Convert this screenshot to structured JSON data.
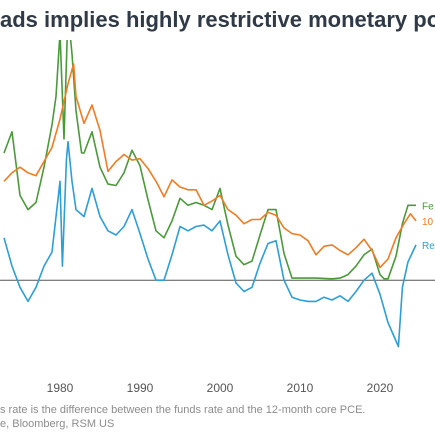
{
  "title": "ads implies highly restrictive monetary pol",
  "footnote_line1": "s rate is the difference between the funds rate and the 12-month core PCE.",
  "footnote_line2": "e, Bloomberg, RSM US",
  "colors": {
    "fed_funds": "#4a9a3a",
    "ten_year": "#f07c24",
    "real_rate": "#2c9fd6",
    "zero_line": "#555555",
    "title": "#2f3a46"
  },
  "chart_data": {
    "type": "line",
    "title": "ads implies highly restrictive monetary pol",
    "xlabel": "",
    "ylabel": "",
    "x_ticks": [
      1980,
      1990,
      2000,
      2010,
      2020
    ],
    "xlim": [
      1972.5,
      2025
    ],
    "ylim": [
      -6,
      17
    ],
    "zero_line": 0,
    "legend_placement": "right",
    "series": [
      {
        "name": "Fe",
        "color": "#4a9a3a",
        "points": [
          [
            1973,
            9.0
          ],
          [
            1974,
            10.5
          ],
          [
            1975,
            6.0
          ],
          [
            1976,
            5.0
          ],
          [
            1977,
            5.5
          ],
          [
            1978,
            8.0
          ],
          [
            1979,
            11.0
          ],
          [
            1979.5,
            13.0
          ],
          [
            1980,
            17.5
          ],
          [
            1980.5,
            10.0
          ],
          [
            1981,
            19.0
          ],
          [
            1981.5,
            16.0
          ],
          [
            1982,
            12.0
          ],
          [
            1982.7,
            9.0
          ],
          [
            1983,
            9.0
          ],
          [
            1984,
            10.5
          ],
          [
            1985,
            8.0
          ],
          [
            1986,
            6.8
          ],
          [
            1987,
            6.7
          ],
          [
            1988,
            7.6
          ],
          [
            1989,
            9.2
          ],
          [
            1990,
            8.1
          ],
          [
            1991,
            5.7
          ],
          [
            1992,
            3.5
          ],
          [
            1993,
            3.0
          ],
          [
            1994,
            4.2
          ],
          [
            1995,
            5.8
          ],
          [
            1996,
            5.3
          ],
          [
            1997,
            5.5
          ],
          [
            1998,
            5.3
          ],
          [
            1999,
            5.0
          ],
          [
            2000,
            6.5
          ],
          [
            2001,
            3.9
          ],
          [
            2002,
            1.7
          ],
          [
            2003,
            1.1
          ],
          [
            2004,
            1.35
          ],
          [
            2005,
            3.2
          ],
          [
            2006,
            5.0
          ],
          [
            2007,
            5.0
          ],
          [
            2008,
            1.9
          ],
          [
            2009,
            0.15
          ],
          [
            2010,
            0.15
          ],
          [
            2012,
            0.15
          ],
          [
            2014,
            0.1
          ],
          [
            2015,
            0.15
          ],
          [
            2016,
            0.4
          ],
          [
            2017,
            1.0
          ],
          [
            2018,
            1.8
          ],
          [
            2019,
            2.2
          ],
          [
            2020,
            0.4
          ],
          [
            2020.5,
            0.1
          ],
          [
            2021,
            0.1
          ],
          [
            2022,
            1.7
          ],
          [
            2022.8,
            4.0
          ],
          [
            2023.5,
            5.3
          ],
          [
            2024.5,
            5.3
          ]
        ]
      },
      {
        "name": "10",
        "color": "#f07c24",
        "points": [
          [
            1973,
            7.0
          ],
          [
            1974,
            7.6
          ],
          [
            1975,
            8.0
          ],
          [
            1976,
            7.6
          ],
          [
            1977,
            7.4
          ],
          [
            1978,
            8.4
          ],
          [
            1979,
            9.4
          ],
          [
            1980,
            11.4
          ],
          [
            1981,
            13.9
          ],
          [
            1981.7,
            15.3
          ],
          [
            1982,
            13.0
          ],
          [
            1983,
            11.1
          ],
          [
            1984,
            12.4
          ],
          [
            1985,
            10.6
          ],
          [
            1986,
            7.7
          ],
          [
            1987,
            8.4
          ],
          [
            1988,
            8.9
          ],
          [
            1989,
            8.5
          ],
          [
            1990,
            8.6
          ],
          [
            1991,
            7.9
          ],
          [
            1992,
            7.0
          ],
          [
            1993,
            5.9
          ],
          [
            1994,
            7.1
          ],
          [
            1995,
            6.6
          ],
          [
            1996,
            6.4
          ],
          [
            1997,
            6.4
          ],
          [
            1998,
            5.3
          ],
          [
            1999,
            5.6
          ],
          [
            2000,
            6.0
          ],
          [
            2001,
            5.0
          ],
          [
            2002,
            4.6
          ],
          [
            2003,
            4.0
          ],
          [
            2004,
            4.3
          ],
          [
            2005,
            4.3
          ],
          [
            2006,
            4.8
          ],
          [
            2007,
            4.6
          ],
          [
            2008,
            3.7
          ],
          [
            2009,
            3.3
          ],
          [
            2010,
            3.2
          ],
          [
            2011,
            2.8
          ],
          [
            2012,
            1.8
          ],
          [
            2013,
            2.4
          ],
          [
            2014,
            2.5
          ],
          [
            2015,
            2.1
          ],
          [
            2016,
            1.8
          ],
          [
            2017,
            2.3
          ],
          [
            2018,
            2.9
          ],
          [
            2019,
            2.1
          ],
          [
            2020,
            0.9
          ],
          [
            2021,
            1.5
          ],
          [
            2022,
            3.0
          ],
          [
            2023,
            4.0
          ],
          [
            2023.8,
            4.7
          ],
          [
            2024.5,
            4.2
          ]
        ]
      },
      {
        "name": "Re",
        "color": "#2c9fd6",
        "points": [
          [
            1973,
            3.0
          ],
          [
            1974,
            1.0
          ],
          [
            1975,
            -0.5
          ],
          [
            1976,
            -1.5
          ],
          [
            1977,
            -0.5
          ],
          [
            1978,
            1.0
          ],
          [
            1979,
            2.0
          ],
          [
            1979.6,
            5.0
          ],
          [
            1980,
            7.0
          ],
          [
            1980.3,
            1.0
          ],
          [
            1980.8,
            8.5
          ],
          [
            1981,
            9.8
          ],
          [
            1981.5,
            7.0
          ],
          [
            1982,
            5.0
          ],
          [
            1983,
            4.5
          ],
          [
            1984,
            6.5
          ],
          [
            1985,
            4.5
          ],
          [
            1986,
            3.5
          ],
          [
            1987,
            3.2
          ],
          [
            1988,
            3.8
          ],
          [
            1989,
            5.0
          ],
          [
            1990,
            3.3
          ],
          [
            1991,
            1.5
          ],
          [
            1992,
            0.0
          ],
          [
            1993,
            0.0
          ],
          [
            1994,
            1.8
          ],
          [
            1995,
            3.8
          ],
          [
            1996,
            3.5
          ],
          [
            1997,
            3.8
          ],
          [
            1998,
            3.9
          ],
          [
            1999,
            3.5
          ],
          [
            2000,
            4.2
          ],
          [
            2001,
            1.8
          ],
          [
            2002,
            -0.2
          ],
          [
            2003,
            -0.8
          ],
          [
            2004,
            -0.5
          ],
          [
            2005,
            1.2
          ],
          [
            2006,
            2.6
          ],
          [
            2007,
            2.8
          ],
          [
            2008,
            0.0
          ],
          [
            2009,
            -1.2
          ],
          [
            2010,
            -1.4
          ],
          [
            2011,
            -1.5
          ],
          [
            2012,
            -1.5
          ],
          [
            2013,
            -1.2
          ],
          [
            2014,
            -1.4
          ],
          [
            2015,
            -1.1
          ],
          [
            2016,
            -1.5
          ],
          [
            2017,
            -0.8
          ],
          [
            2018,
            0.0
          ],
          [
            2019,
            0.5
          ],
          [
            2020,
            -1.0
          ],
          [
            2021,
            -3.0
          ],
          [
            2022,
            -4.3
          ],
          [
            2022.3,
            -4.7
          ],
          [
            2022.8,
            -0.5
          ],
          [
            2023.5,
            1.3
          ],
          [
            2024.5,
            2.5
          ]
        ]
      }
    ]
  }
}
